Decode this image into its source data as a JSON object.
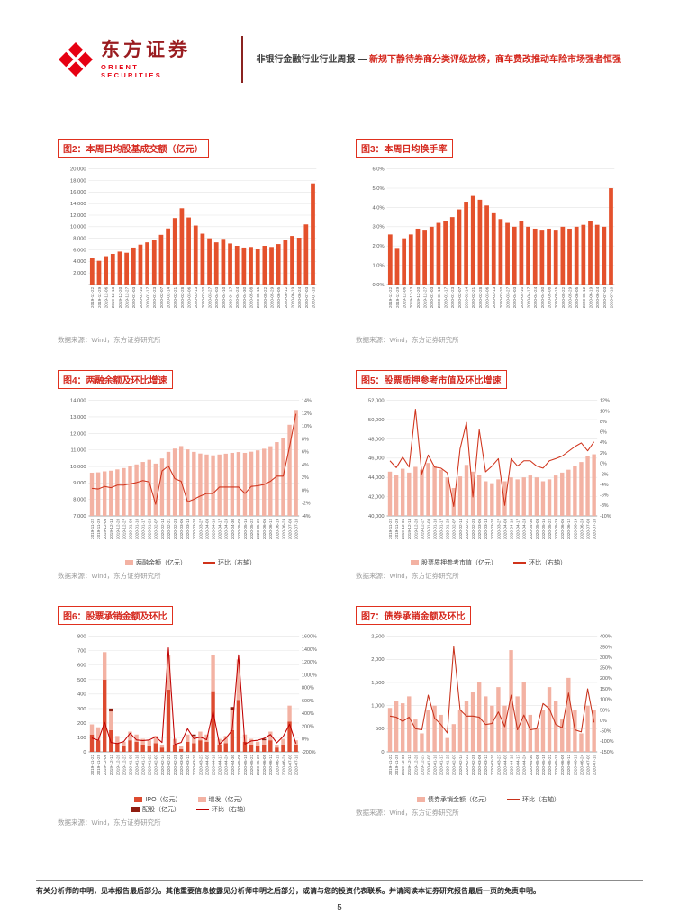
{
  "header": {
    "brand_cn": "东方证券",
    "brand_en": "ORIENT SECURITIES",
    "report_type": "非银行金融行业行业周报",
    "dash": "—",
    "report_title": "新规下静待券商分类评级放榜，商车费改推动车险市场强者恒强"
  },
  "footer": {
    "disclaimer": "有关分析师的申明，见本报告最后部分。其他重要信息披露见分析师申明之后部分，或请与您的投资代表联系。并请阅读本证券研究报告最后一页的免责申明。",
    "page_number": "5"
  },
  "chart_data": [
    {
      "id": "fig2",
      "title": "图2：本周日均股基成交额（亿元）",
      "type": "bar",
      "source": "数据来源：Wind，东方证券研究所",
      "categories": [
        "2019-11-22",
        "2019-11-29",
        "2019-12-06",
        "2019-12-13",
        "2019-12-20",
        "2019-12-27",
        "2020-01-03",
        "2020-01-10",
        "2020-01-17",
        "2020-01-23",
        "2020-02-07",
        "2020-02-14",
        "2020-02-21",
        "2020-02-28",
        "2020-03-06",
        "2020-03-13",
        "2020-03-20",
        "2020-03-27",
        "2020-04-03",
        "2020-04-10",
        "2020-04-17",
        "2020-04-24",
        "2020-04-30",
        "2020-05-08",
        "2020-05-15",
        "2020-05-22",
        "2020-05-29",
        "2020-06-05",
        "2020-06-12",
        "2020-06-19",
        "2020-06-24",
        "2020-07-03",
        "2020-07-10"
      ],
      "left_axis": {
        "min": 0,
        "max": 20000,
        "tick_values": [
          2000,
          4000,
          6000,
          8000,
          10000,
          12000,
          14000,
          16000,
          18000,
          20000
        ],
        "tick_labels": [
          "2,000",
          "4,000",
          "6,000",
          "8,000",
          "10,000",
          "12,000",
          "14,000",
          "16,000",
          "18,000",
          "20,000"
        ]
      },
      "series": [
        {
          "type": "bar",
          "color": "#e4512c",
          "values": [
            4600,
            4100,
            4900,
            5300,
            5700,
            5500,
            6400,
            6900,
            7300,
            7700,
            8600,
            9700,
            11500,
            13200,
            11600,
            10200,
            8800,
            8000,
            7300,
            7900,
            7100,
            6700,
            6400,
            6500,
            6200,
            6700,
            6500,
            7000,
            7700,
            8400,
            8100,
            10400,
            17500
          ]
        }
      ]
    },
    {
      "id": "fig3",
      "title": "图3：本周日均换手率",
      "type": "bar",
      "source": "数据来源：Wind，东方证券研究所",
      "categories": [
        "2019-11-22",
        "2019-11-29",
        "2019-12-06",
        "2019-12-13",
        "2019-12-20",
        "2019-12-27",
        "2020-01-03",
        "2020-01-10",
        "2020-01-17",
        "2020-01-23",
        "2020-02-07",
        "2020-02-14",
        "2020-02-21",
        "2020-02-28",
        "2020-03-06",
        "2020-03-13",
        "2020-03-20",
        "2020-03-27",
        "2020-04-03",
        "2020-04-10",
        "2020-04-17",
        "2020-04-24",
        "2020-04-30",
        "2020-05-08",
        "2020-05-15",
        "2020-05-22",
        "2020-05-29",
        "2020-06-05",
        "2020-06-12",
        "2020-06-19",
        "2020-06-24",
        "2020-07-03",
        "2020-07-10"
      ],
      "left_axis": {
        "min": 0,
        "max": 6,
        "tick_values": [
          0,
          1,
          2,
          3,
          4,
          5,
          6
        ],
        "tick_labels": [
          "0.0%",
          "1.0%",
          "2.0%",
          "3.0%",
          "4.0%",
          "5.0%",
          "6.0%"
        ]
      },
      "series": [
        {
          "type": "bar",
          "color": "#e4512c",
          "values": [
            2.6,
            1.9,
            2.4,
            2.6,
            2.9,
            2.8,
            3.0,
            3.2,
            3.3,
            3.5,
            3.9,
            4.3,
            4.6,
            4.4,
            4.1,
            3.7,
            3.4,
            3.2,
            3.0,
            3.3,
            3.0,
            2.9,
            2.8,
            2.9,
            2.8,
            3.0,
            2.9,
            3.0,
            3.1,
            3.3,
            3.1,
            3.0,
            5.0
          ]
        }
      ]
    },
    {
      "id": "fig4",
      "title": "图4：两融余额及环比增速",
      "type": "bar",
      "source": "数据来源：Wind，东方证券研究所",
      "categories": [
        "2019-11-22",
        "2019-11-29",
        "2019-12-06",
        "2019-12-13",
        "2019-12-20",
        "2019-12-27",
        "2020-01-03",
        "2020-01-10",
        "2020-01-17",
        "2020-01-23",
        "2020-02-07",
        "2020-02-14",
        "2020-02-21",
        "2020-02-28",
        "2020-03-06",
        "2020-03-13",
        "2020-03-20",
        "2020-03-27",
        "2020-04-03",
        "2020-04-10",
        "2020-04-17",
        "2020-04-24",
        "2020-04-30",
        "2020-05-08",
        "2020-05-15",
        "2020-05-22",
        "2020-05-29",
        "2020-06-05",
        "2020-06-12",
        "2020-06-19",
        "2020-06-24",
        "2020-07-03",
        "2020-07-10"
      ],
      "left_axis": {
        "min": 7000,
        "max": 14000,
        "tick_values": [
          7000,
          8000,
          9000,
          10000,
          11000,
          12000,
          13000,
          14000
        ],
        "tick_labels": [
          "7,000",
          "8,000",
          "9,000",
          "10,000",
          "11,000",
          "12,000",
          "13,000",
          "14,000"
        ]
      },
      "right_axis": {
        "min": -4,
        "max": 14,
        "tick_values": [
          -4,
          -2,
          0,
          2,
          4,
          6,
          8,
          10,
          12,
          14
        ],
        "tick_labels": [
          "-4%",
          "-2%",
          "0%",
          "2%",
          "4%",
          "6%",
          "8%",
          "10%",
          "12%",
          "14%"
        ]
      },
      "series": [
        {
          "name": "两融余额（亿元）",
          "type": "bar",
          "color": "#f3b2a3",
          "values": [
            9620,
            9640,
            9700,
            9740,
            9820,
            9900,
            10000,
            10120,
            10270,
            10400,
            10170,
            10480,
            10880,
            11080,
            11230,
            11030,
            10880,
            10780,
            10720,
            10670,
            10720,
            10770,
            10820,
            10870,
            10820,
            10890,
            10970,
            11070,
            11220,
            11470,
            11720,
            12520,
            13420
          ]
        },
        {
          "name": "环比（右轴）",
          "type": "line",
          "color": "#d0331b",
          "values": [
            0.3,
            0.2,
            0.6,
            0.4,
            0.8,
            0.8,
            1.0,
            1.2,
            1.5,
            1.3,
            -2.2,
            3.0,
            3.8,
            1.8,
            1.4,
            -1.8,
            -1.4,
            -0.9,
            -0.5,
            -0.5,
            0.5,
            0.5,
            0.5,
            0.5,
            -0.5,
            0.6,
            0.7,
            0.9,
            1.4,
            2.2,
            2.2,
            6.8,
            11.9
          ]
        }
      ]
    },
    {
      "id": "fig5",
      "title": "图5：股票质押参考市值及环比增速",
      "type": "bar",
      "source": "数据来源：Wind，东方证券研究所",
      "categories": [
        "2019-11-22",
        "2019-11-29",
        "2019-12-06",
        "2019-12-13",
        "2019-12-20",
        "2019-12-27",
        "2020-01-03",
        "2020-01-10",
        "2020-01-17",
        "2020-01-23",
        "2020-02-07",
        "2020-02-14",
        "2020-02-21",
        "2020-02-28",
        "2020-03-06",
        "2020-03-13",
        "2020-03-20",
        "2020-03-27",
        "2020-04-03",
        "2020-04-10",
        "2020-04-17",
        "2020-04-24",
        "2020-04-30",
        "2020-05-08",
        "2020-05-15",
        "2020-05-22",
        "2020-05-29",
        "2020-06-05",
        "2020-06-12",
        "2020-06-19",
        "2020-06-24",
        "2020-07-03",
        "2020-07-10"
      ],
      "left_axis": {
        "min": 40000,
        "max": 52000,
        "tick_values": [
          40000,
          42000,
          44000,
          46000,
          48000,
          50000,
          52000
        ],
        "tick_labels": [
          "40,000",
          "42,000",
          "44,000",
          "46,000",
          "48,000",
          "50,000",
          "52,000"
        ]
      },
      "right_axis": {
        "min": -10,
        "max": 12,
        "tick_values": [
          -10,
          -8,
          -6,
          -4,
          -2,
          0,
          2,
          4,
          6,
          8,
          10,
          12
        ],
        "tick_labels": [
          "-10%",
          "-8%",
          "-6%",
          "-4%",
          "-2%",
          "0%",
          "2%",
          "4%",
          "6%",
          "8%",
          "10%",
          "12%"
        ]
      },
      "series": [
        {
          "name": "股票质押参考市值（亿元）",
          "type": "bar",
          "color": "#f3b2a3",
          "values": [
            44600,
            44300,
            44900,
            44500,
            45100,
            44800,
            45500,
            45200,
            44800,
            44000,
            42900,
            44100,
            45300,
            44600,
            44300,
            43600,
            43400,
            43800,
            43600,
            44000,
            43800,
            44000,
            44200,
            44000,
            43600,
            43800,
            44200,
            44500,
            44800,
            45200,
            45600,
            46200,
            46400
          ]
        },
        {
          "name": "环比（右轴）",
          "type": "line",
          "color": "#d0331b",
          "values": [
            0.5,
            -0.8,
            1.2,
            -0.7,
            10.3,
            -2.0,
            1.6,
            -0.7,
            -0.9,
            -1.8,
            -8.2,
            2.8,
            7.8,
            -6.4,
            6.4,
            -1.6,
            -0.5,
            0.9,
            -8.0,
            0.9,
            -0.5,
            0.5,
            0.5,
            -0.5,
            -0.9,
            0.5,
            0.9,
            1.4,
            2.3,
            3.2,
            3.9,
            2.4,
            4.1
          ]
        }
      ]
    },
    {
      "id": "fig6",
      "title": "图6：股票承销金额及环比",
      "type": "bar",
      "stacked": true,
      "source": "数据来源：Wind，东方证券研究所",
      "categories": [
        "2019-11-22",
        "2019-11-29",
        "2019-12-06",
        "2019-12-13",
        "2019-12-20",
        "2019-12-27",
        "2020-01-03",
        "2020-01-10",
        "2020-01-17",
        "2020-01-23",
        "2020-02-07",
        "2020-02-14",
        "2020-02-21",
        "2020-02-28",
        "2020-03-06",
        "2020-03-13",
        "2020-03-20",
        "2020-03-27",
        "2020-04-03",
        "2020-04-10",
        "2020-04-17",
        "2020-04-24",
        "2020-04-30",
        "2020-05-08",
        "2020-05-15",
        "2020-05-22",
        "2020-05-29",
        "2020-06-05",
        "2020-06-12",
        "2020-06-19",
        "2020-06-24",
        "2020-07-03",
        "2020-07-10"
      ],
      "left_axis": {
        "min": 0,
        "max": 800,
        "tick_values": [
          0,
          100,
          200,
          300,
          400,
          500,
          600,
          700,
          800
        ],
        "tick_labels": [
          "0",
          "100",
          "200",
          "300",
          "400",
          "500",
          "600",
          "700",
          "800"
        ]
      },
      "right_axis": {
        "min": -200,
        "max": 1600,
        "tick_values": [
          -200,
          0,
          200,
          400,
          600,
          800,
          1000,
          1200,
          1400,
          1600
        ],
        "tick_labels": [
          "-200%",
          "0%",
          "200%",
          "400%",
          "600%",
          "800%",
          "1000%",
          "1200%",
          "1400%",
          "1600%"
        ]
      },
      "series": [
        {
          "name": "IPO（亿元）",
          "type": "bar",
          "color": "#dd4a2f",
          "values": [
            120,
            80,
            500,
            150,
            60,
            40,
            80,
            70,
            50,
            40,
            60,
            30,
            430,
            50,
            20,
            70,
            60,
            80,
            70,
            420,
            50,
            60,
            150,
            360,
            70,
            50,
            40,
            50,
            80,
            30,
            50,
            210,
            50
          ]
        },
        {
          "name": "增发（亿元）",
          "type": "bar",
          "color": "#f3b2a3",
          "values": [
            70,
            90,
            190,
            130,
            50,
            30,
            60,
            50,
            40,
            40,
            50,
            20,
            240,
            40,
            20,
            50,
            50,
            60,
            50,
            250,
            40,
            50,
            140,
            280,
            50,
            40,
            30,
            30,
            60,
            20,
            40,
            110,
            30
          ]
        },
        {
          "name": "配股（亿元）",
          "type": "bar",
          "color": "#8f1d10",
          "values": [
            0,
            0,
            0,
            20,
            0,
            0,
            0,
            0,
            0,
            0,
            0,
            0,
            0,
            0,
            0,
            0,
            10,
            0,
            0,
            0,
            0,
            0,
            20,
            0,
            0,
            0,
            0,
            10,
            0,
            0,
            0,
            0,
            0
          ]
        },
        {
          "name": "环比（右轴）",
          "type": "line",
          "color": "#c00000",
          "values": [
            15,
            -20,
            260,
            -55,
            -70,
            -40,
            90,
            -15,
            -25,
            -15,
            35,
            -55,
            1420,
            -85,
            -55,
            160,
            5,
            30,
            -10,
            430,
            -80,
            10,
            140,
            1310,
            -80,
            -30,
            -20,
            10,
            70,
            -60,
            40,
            230,
            -70
          ]
        }
      ]
    },
    {
      "id": "fig7",
      "title": "图7：债券承销金额及环比",
      "type": "bar",
      "source": "数据来源：Wind，东方证券研究所",
      "categories": [
        "2019-11-22",
        "2019-11-29",
        "2019-12-06",
        "2019-12-13",
        "2019-12-20",
        "2019-12-27",
        "2020-01-03",
        "2020-01-10",
        "2020-01-17",
        "2020-01-23",
        "2020-02-07",
        "2020-02-14",
        "2020-02-21",
        "2020-02-28",
        "2020-03-06",
        "2020-03-13",
        "2020-03-20",
        "2020-03-27",
        "2020-04-03",
        "2020-04-10",
        "2020-04-17",
        "2020-04-24",
        "2020-04-30",
        "2020-05-08",
        "2020-05-15",
        "2020-05-22",
        "2020-05-29",
        "2020-06-05",
        "2020-06-12",
        "2020-06-19",
        "2020-06-24",
        "2020-07-03",
        "2020-07-10"
      ],
      "left_axis": {
        "min": 0,
        "max": 2500,
        "tick_values": [
          0,
          500,
          1000,
          1500,
          2000,
          2500
        ],
        "tick_labels": [
          "0",
          "500",
          "1,000",
          "1,500",
          "2,000",
          "2,500"
        ]
      },
      "right_axis": {
        "min": -150,
        "max": 400,
        "tick_values": [
          -150,
          -100,
          -50,
          0,
          50,
          100,
          150,
          200,
          250,
          300,
          350,
          400
        ],
        "tick_labels": [
          "-150%",
          "-100%",
          "-50%",
          "0%",
          "50%",
          "100%",
          "150%",
          "200%",
          "250%",
          "300%",
          "350%",
          "400%"
        ]
      },
      "series": [
        {
          "name": "债券承销金额（亿元）",
          "type": "bar",
          "color": "#f3b2a3",
          "values": [
            950,
            1100,
            1050,
            1200,
            700,
            400,
            900,
            1000,
            800,
            300,
            600,
            900,
            1100,
            1300,
            1500,
            1200,
            1000,
            1400,
            1000,
            2200,
            1200,
            1500,
            800,
            500,
            900,
            1400,
            1100,
            700,
            1600,
            900,
            400,
            1000,
            900
          ]
        },
        {
          "name": "环比（右轴）",
          "type": "line",
          "color": "#c8321b",
          "values": [
            20,
            15,
            -5,
            15,
            -40,
            -45,
            120,
            10,
            -20,
            -60,
            350,
            50,
            20,
            20,
            15,
            -20,
            -15,
            40,
            -30,
            120,
            -45,
            25,
            -45,
            -40,
            80,
            55,
            -20,
            -35,
            130,
            -45,
            -55,
            150,
            -10
          ]
        }
      ]
    }
  ]
}
